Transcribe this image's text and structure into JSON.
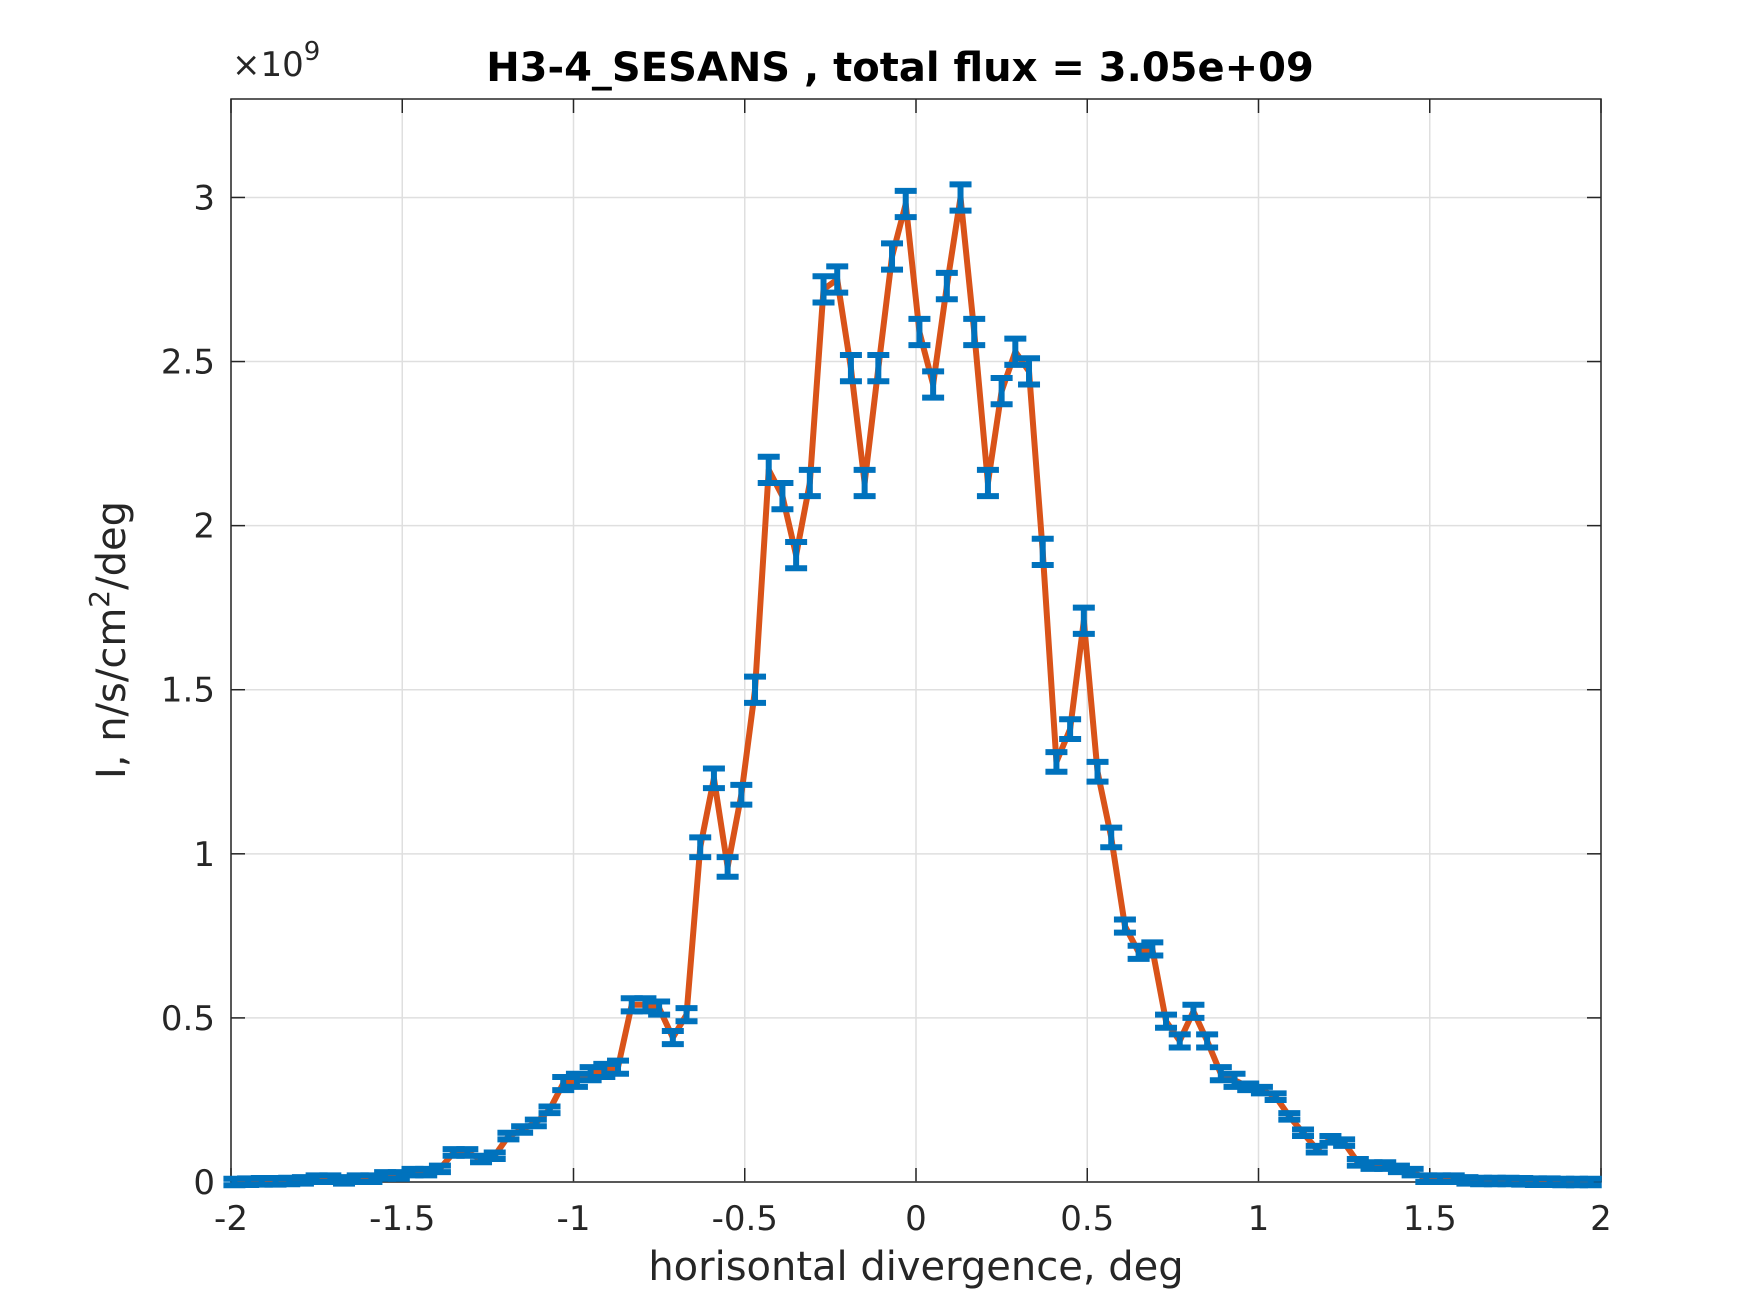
{
  "chart_data": {
    "type": "errorbar-line",
    "title": "H3-4_SESANS , total flux =  3.05e+09",
    "xlabel": "horisontal divergence, deg",
    "ylabel": {
      "text": "I, n/s/cm",
      "sup": "2",
      "rest": "/deg"
    },
    "y_exponent": {
      "base": "×10",
      "power": "9"
    },
    "xlim": [
      -2,
      2
    ],
    "ylim": [
      0,
      3.3
    ],
    "xticks": [
      -2,
      -1.5,
      -1,
      -0.5,
      0,
      0.5,
      1,
      1.5,
      2
    ],
    "yticks": [
      0,
      0.5,
      1,
      1.5,
      2,
      2.5,
      3
    ],
    "grid": true,
    "line_color": "#D95319",
    "errorbar_color": "#0072BD",
    "x": [
      -1.99,
      -1.95,
      -1.91,
      -1.87,
      -1.83,
      -1.79,
      -1.75,
      -1.71,
      -1.67,
      -1.63,
      -1.59,
      -1.55,
      -1.51,
      -1.47,
      -1.43,
      -1.39,
      -1.35,
      -1.31,
      -1.27,
      -1.23,
      -1.19,
      -1.15,
      -1.11,
      -1.07,
      -1.03,
      -0.99,
      -0.95,
      -0.91,
      -0.87,
      -0.83,
      -0.79,
      -0.75,
      -0.71,
      -0.67,
      -0.63,
      -0.59,
      -0.55,
      -0.51,
      -0.47,
      -0.43,
      -0.39,
      -0.35,
      -0.31,
      -0.27,
      -0.23,
      -0.19,
      -0.15,
      -0.11,
      -0.07,
      -0.03,
      0.01,
      0.05,
      0.09,
      0.13,
      0.17,
      0.21,
      0.25,
      0.29,
      0.33,
      0.37,
      0.41,
      0.45,
      0.49,
      0.53,
      0.57,
      0.61,
      0.65,
      0.69,
      0.73,
      0.77,
      0.81,
      0.85,
      0.89,
      0.93,
      0.97,
      1.01,
      1.05,
      1.09,
      1.13,
      1.17,
      1.21,
      1.25,
      1.29,
      1.33,
      1.37,
      1.41,
      1.45,
      1.49,
      1.53,
      1.57,
      1.61,
      1.65,
      1.69,
      1.73,
      1.77,
      1.81,
      1.85,
      1.89,
      1.93,
      1.97
    ],
    "values": [
      0,
      0.001,
      0.002,
      0.002,
      0.003,
      0.005,
      0.01,
      0.01,
      0.005,
      0.01,
      0.01,
      0.02,
      0.02,
      0.03,
      0.03,
      0.04,
      0.09,
      0.09,
      0.07,
      0.08,
      0.14,
      0.16,
      0.18,
      0.22,
      0.3,
      0.31,
      0.33,
      0.34,
      0.35,
      0.54,
      0.54,
      0.53,
      0.44,
      0.51,
      1.02,
      1.23,
      0.96,
      1.18,
      1.5,
      2.17,
      2.09,
      1.91,
      2.13,
      2.72,
      2.75,
      2.48,
      2.13,
      2.48,
      2.82,
      2.98,
      2.59,
      2.43,
      2.73,
      3.0,
      2.59,
      2.13,
      2.41,
      2.53,
      2.47,
      1.92,
      1.28,
      1.38,
      1.71,
      1.25,
      1.05,
      0.78,
      0.7,
      0.71,
      0.49,
      0.43,
      0.52,
      0.43,
      0.33,
      0.31,
      0.29,
      0.28,
      0.26,
      0.2,
      0.15,
      0.1,
      0.13,
      0.12,
      0.06,
      0.05,
      0.05,
      0.04,
      0.03,
      0.01,
      0.01,
      0.01,
      0.005,
      0.003,
      0.003,
      0.003,
      0.002,
      0.001,
      0.001,
      0,
      0,
      0
    ],
    "errors": [
      0.01,
      0.01,
      0.01,
      0.01,
      0.01,
      0.01,
      0.01,
      0.01,
      0.01,
      0.01,
      0.01,
      0.01,
      0.01,
      0.01,
      0.01,
      0.01,
      0.01,
      0.01,
      0.01,
      0.01,
      0.01,
      0.01,
      0.01,
      0.01,
      0.02,
      0.02,
      0.02,
      0.02,
      0.02,
      0.02,
      0.02,
      0.02,
      0.02,
      0.02,
      0.03,
      0.03,
      0.03,
      0.03,
      0.04,
      0.04,
      0.04,
      0.04,
      0.04,
      0.04,
      0.04,
      0.04,
      0.04,
      0.04,
      0.04,
      0.04,
      0.04,
      0.04,
      0.04,
      0.04,
      0.04,
      0.04,
      0.04,
      0.04,
      0.04,
      0.04,
      0.03,
      0.03,
      0.04,
      0.03,
      0.03,
      0.02,
      0.02,
      0.02,
      0.02,
      0.02,
      0.02,
      0.02,
      0.02,
      0.02,
      0.01,
      0.01,
      0.01,
      0.01,
      0.01,
      0.01,
      0.01,
      0.01,
      0.01,
      0.01,
      0.01,
      0.01,
      0.01,
      0.01,
      0.01,
      0.01,
      0.01,
      0.01,
      0.01,
      0.01,
      0.01,
      0.01,
      0.01,
      0.01,
      0.01,
      0.01
    ]
  }
}
